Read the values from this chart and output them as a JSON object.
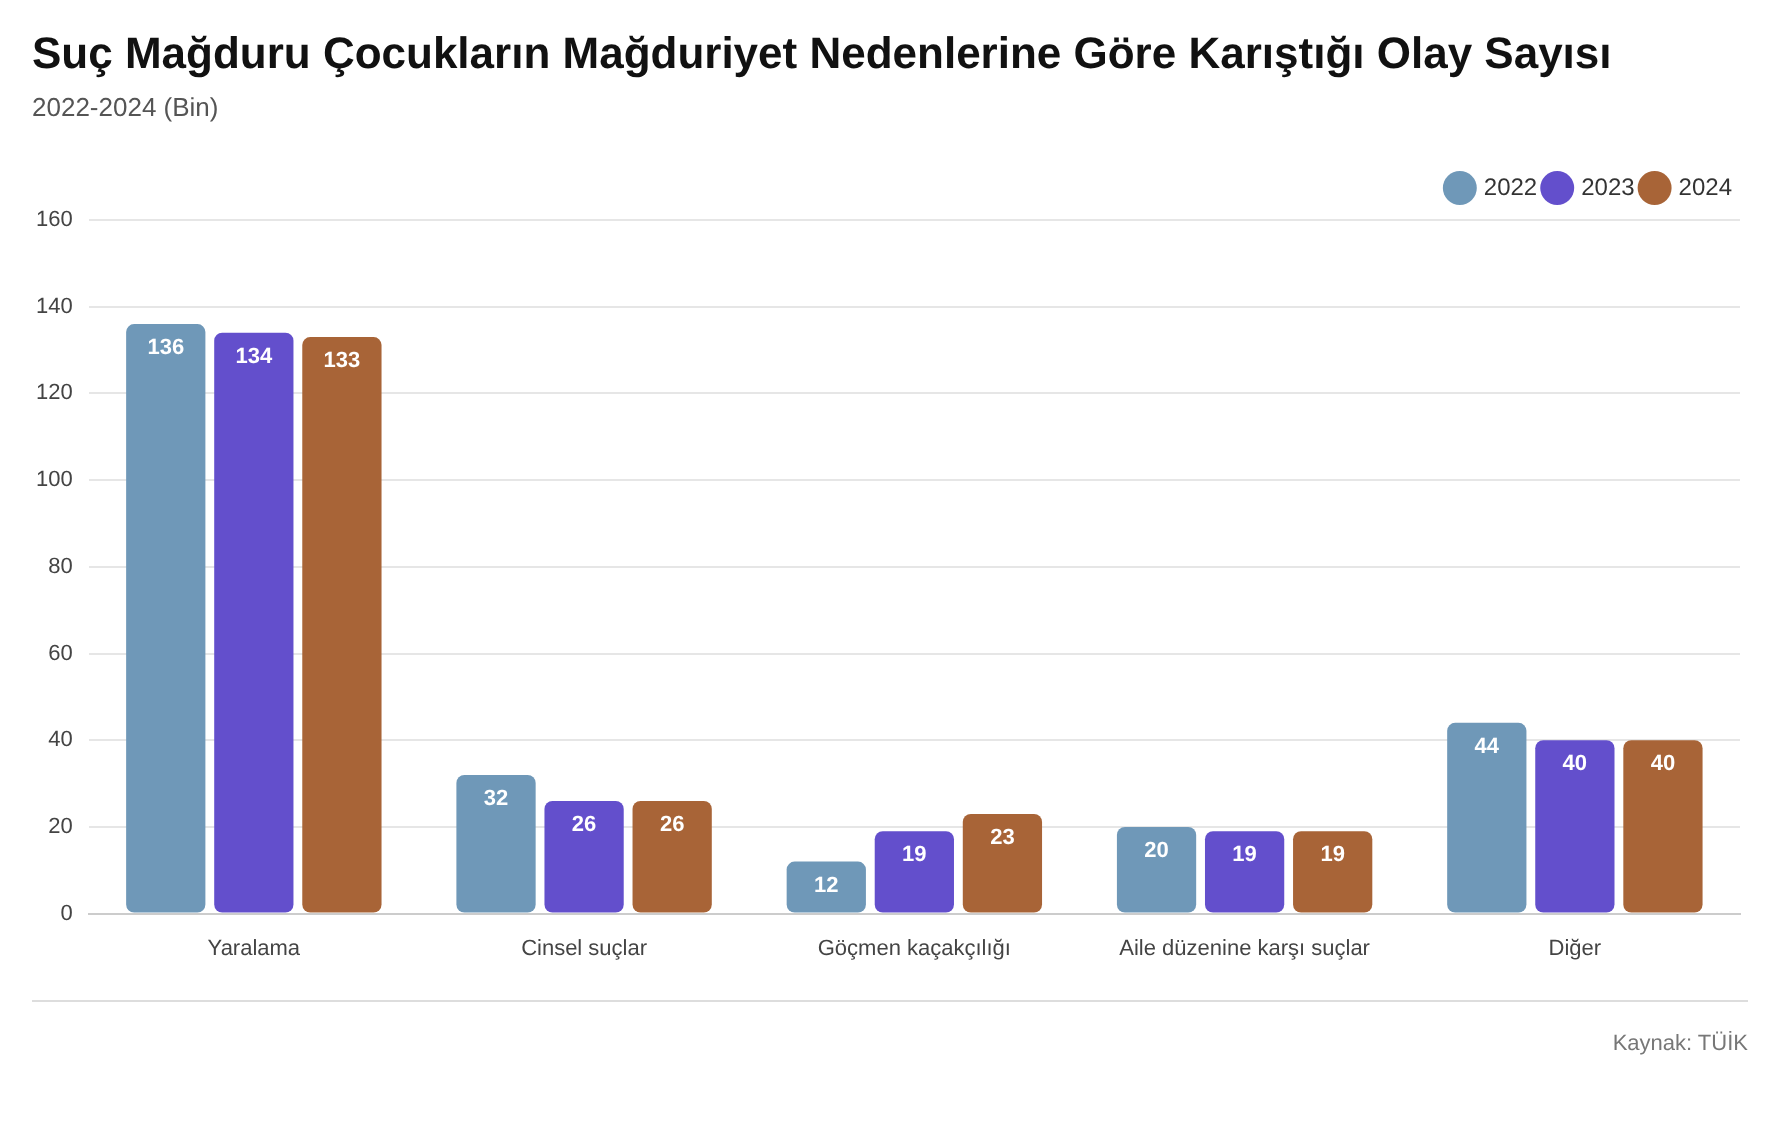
{
  "chart_data": {
    "type": "bar",
    "title": "Suç Mağduru Çocukların Mağduriyet Nedenlerine Göre Karıştığı Olay Sayısı",
    "subtitle": "2022-2024 (Bin)",
    "categories": [
      "Yaralama",
      "Cinsel suçlar",
      "Göçmen kaçakçılığı",
      "Aile düzenine karşı suçlar",
      "Diğer"
    ],
    "series": [
      {
        "name": "2022",
        "color": "#6f98b8",
        "values": [
          136,
          32,
          12,
          20,
          44
        ]
      },
      {
        "name": "2023",
        "color": "#634fcc",
        "values": [
          134,
          26,
          19,
          19,
          40
        ]
      },
      {
        "name": "2024",
        "color": "#a86437",
        "values": [
          133,
          26,
          23,
          19,
          40
        ]
      }
    ],
    "ylim": [
      0,
      160
    ],
    "yticks": [
      0,
      20,
      40,
      60,
      80,
      100,
      120,
      140,
      160
    ],
    "grid": "y",
    "legend": "top right",
    "data_labels": true,
    "annotations": [
      "Kaynak: TÜİK"
    ]
  }
}
